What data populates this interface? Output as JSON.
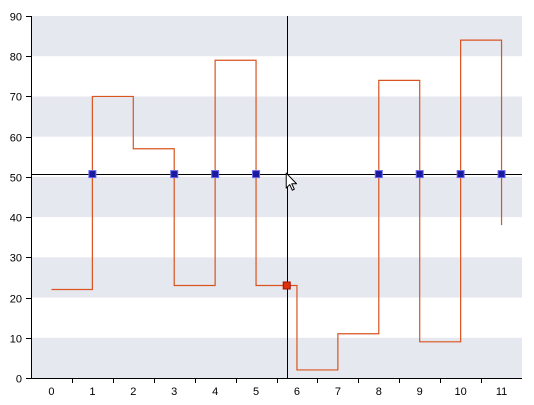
{
  "chart_data": {
    "type": "line",
    "line_style": "step",
    "title": "",
    "xlabel": "",
    "ylabel": "",
    "xlim": [
      -0.5,
      11.5
    ],
    "ylim": [
      0,
      90
    ],
    "x_ticks": [
      0,
      1,
      2,
      3,
      4,
      5,
      6,
      7,
      8,
      9,
      10,
      11
    ],
    "y_ticks": [
      0,
      10,
      20,
      30,
      40,
      50,
      60,
      70,
      80,
      90
    ],
    "grid": "alternating horizontal bands",
    "band_color": "#e6e8f0",
    "series": [
      {
        "color": "#d9541e",
        "points": [
          {
            "x": 0,
            "y": 22
          },
          {
            "x": 1,
            "y": 70
          },
          {
            "x": 2,
            "y": 57
          },
          {
            "x": 3,
            "y": 23
          },
          {
            "x": 4,
            "y": 79
          },
          {
            "x": 5,
            "y": 23
          },
          {
            "x": 6,
            "y": 2
          },
          {
            "x": 7,
            "y": 11
          },
          {
            "x": 8,
            "y": 74
          },
          {
            "x": 9,
            "y": 9
          },
          {
            "x": 10,
            "y": 84
          },
          {
            "x": 11,
            "y": 38
          }
        ]
      }
    ],
    "crosshair": {
      "x": 5.75,
      "y": 50.7,
      "color": "#000000"
    },
    "intersection_markers": {
      "color": "#1a1aa0",
      "border": "#6a6af0",
      "points": [
        {
          "x": 1,
          "y": 50.7
        },
        {
          "x": 3,
          "y": 50.7
        },
        {
          "x": 4,
          "y": 50.7
        },
        {
          "x": 5,
          "y": 50.7
        },
        {
          "x": 8,
          "y": 50.7
        },
        {
          "x": 9,
          "y": 50.7
        },
        {
          "x": 10,
          "y": 50.7
        },
        {
          "x": 11,
          "y": 50.7
        }
      ]
    },
    "highlight_marker": {
      "x": 5.75,
      "y": 23,
      "color": "#e03010"
    },
    "cursor_icon": "mouse-pointer-icon"
  }
}
